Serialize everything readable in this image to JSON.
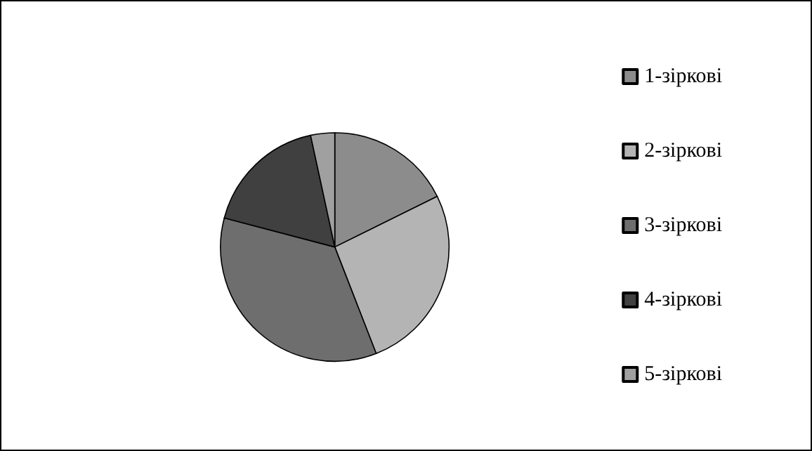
{
  "chart_data": {
    "type": "pie",
    "categories": [
      "1-зіркові",
      "2-зіркові",
      "3-зіркові",
      "4-зіркові",
      "5-зіркові"
    ],
    "values": [
      17.7,
      26.4,
      35,
      17.5,
      3.4
    ],
    "colors": [
      "#8c8c8c",
      "#b4b4b4",
      "#6e6e6e",
      "#404040",
      "#a0a0a0"
    ],
    "legend": "right"
  }
}
